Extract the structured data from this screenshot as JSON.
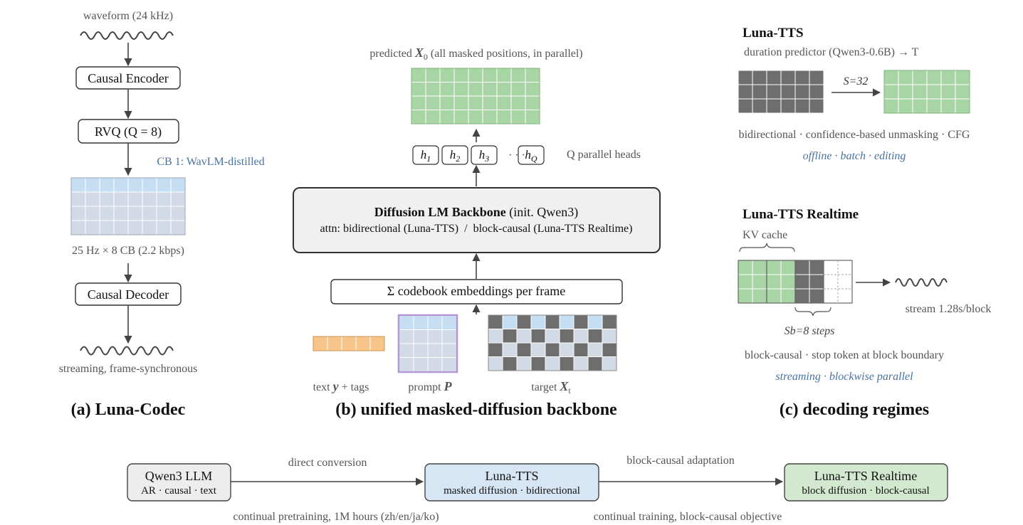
{
  "panel_a": {
    "waveform_label": "waveform (24 kHz)",
    "encoder": "Causal Encoder",
    "rvq": "RVQ (Q = 8)",
    "cb1_label": "CB 1: WavLM-distilled",
    "rate_label": "25 Hz × 8 CB (2.2 kbps)",
    "decoder": "Causal Decoder",
    "stream_label": "streaming, frame-synchronous",
    "caption": "(a) Luna-Codec"
  },
  "panel_b": {
    "predicted_label_a": "predicted ",
    "predicted_label_b": "X",
    "predicted_label_c": "0",
    "predicted_label_d": " (all masked positions, in parallel)",
    "heads": [
      "h1",
      "h2",
      "h3",
      "hQ"
    ],
    "head_bases": [
      "h",
      "h",
      "h",
      "h"
    ],
    "head_subs": [
      "1",
      "2",
      "3",
      "Q"
    ],
    "heads_dots": "· · ·",
    "heads_label": "Q parallel heads",
    "backbone_title_bold": "Diffusion LM Backbone",
    "backbone_title_rest": " (init. Qwen3)",
    "backbone_sub": "attn: bidirectional (Luna-TTS)  /  block-causal (Luna-TTS Realtime)",
    "embed_label": "Σ codebook embeddings per frame",
    "text_label_a": "text ",
    "text_label_b": "y",
    "text_label_c": " + tags",
    "prompt_label_a": "prompt ",
    "prompt_label_b": "P",
    "target_label_a": "target ",
    "target_label_b": "X",
    "target_label_c": "t",
    "caption": "(b) unified masked-diffusion backbone"
  },
  "panel_c": {
    "tts_title": "Luna-TTS",
    "duration_label": "duration predictor (Qwen3-0.6B) → T",
    "steps_label": "S=32",
    "tts_desc": "bidirectional · confidence-based unmasking · CFG",
    "tts_modes": "offline · batch · editing",
    "rt_title": "Luna-TTS Realtime",
    "kv_label": "KV cache",
    "stream_label": "stream 1.28s/block",
    "sb_label": "Sb=8 steps",
    "rt_desc": "block-causal · stop token at block boundary",
    "rt_modes": "streaming · blockwise parallel",
    "caption": "(c) decoding regimes"
  },
  "pipeline": {
    "qwen_title": "Qwen3 LLM",
    "qwen_sub": "AR · causal · text",
    "luna_title": "Luna-TTS",
    "luna_sub": "masked diffusion · bidirectional",
    "rt_title": "Luna-TTS Realtime",
    "rt_sub": "block diffusion · block-causal",
    "arrow1_top": "direct conversion",
    "arrow1_bottom": "continual pretraining, 1M hours (zh/en/ja/ko)",
    "arrow2_top": "block-causal adaptation",
    "arrow2_bottom": "continual training, block-causal objective"
  },
  "colors": {
    "green": "#a8d5a4",
    "blue_cell": "#c5def2",
    "gray_cell": "#d2dae6",
    "dark_cell": "#6e6e6e",
    "orange": "#f7c489",
    "prompt_border": "#b394d6",
    "accent_text": "#4a72a0"
  }
}
